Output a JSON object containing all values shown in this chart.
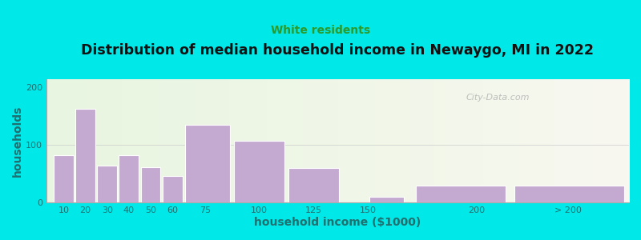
{
  "title": "Distribution of median household income in Newaygo, MI in 2022",
  "subtitle": "White residents",
  "xlabel": "household income ($1000)",
  "ylabel": "households",
  "background_outer": "#00e8e8",
  "bar_color": "#c4aad0",
  "bar_edge_color": "#ffffff",
  "title_fontsize": 12.5,
  "subtitle_fontsize": 10,
  "subtitle_color": "#2a9a2a",
  "axis_label_color": "#207070",
  "tick_color": "#207070",
  "watermark": "City-Data.com",
  "values": [
    82,
    163,
    65,
    83,
    62,
    47,
    135,
    108,
    60,
    10,
    30,
    30
  ],
  "bar_lefts": [
    5,
    15,
    25,
    35,
    45,
    55,
    65,
    87.5,
    112.5,
    150,
    170,
    215
  ],
  "bar_widths": [
    10,
    10,
    10,
    10,
    10,
    10,
    22.5,
    25,
    25,
    17,
    45,
    55
  ],
  "xtick_labels": [
    "10",
    "20",
    "30",
    "40",
    "50",
    "60",
    "75",
    "100",
    "125",
    "150",
    "200",
    "> 200"
  ],
  "xtick_positions": [
    10,
    20,
    30,
    40,
    50,
    60,
    75,
    100,
    125,
    150,
    200,
    242
  ],
  "xlim": [
    2,
    270
  ],
  "ylim": [
    0,
    215
  ],
  "yticks": [
    0,
    100,
    200
  ]
}
